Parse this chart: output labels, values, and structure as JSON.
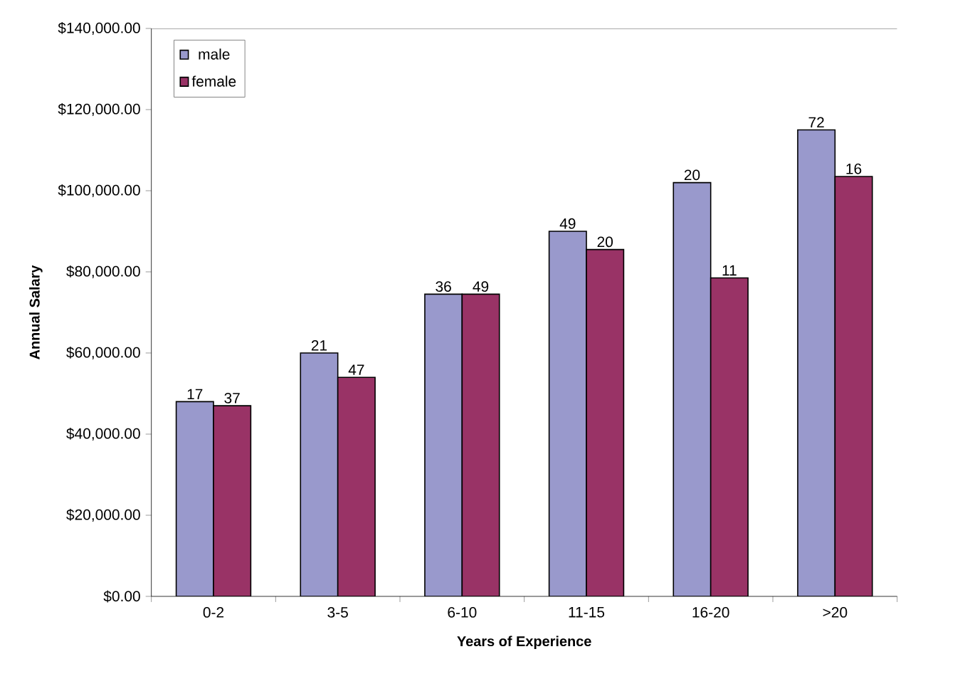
{
  "chart_data": {
    "type": "bar",
    "xlabel": "Years of Experience",
    "ylabel": "Annual Salary",
    "categories": [
      "0-2",
      "3-5",
      "6-10",
      "11-15",
      "16-20",
      ">20"
    ],
    "series": [
      {
        "name": "male",
        "color": "#9999cc",
        "values": [
          48000,
          60000,
          74500,
          90000,
          102000,
          115000
        ]
      },
      {
        "name": "female",
        "color": "#993366",
        "values": [
          47000,
          54000,
          74500,
          85500,
          78500,
          103500
        ]
      }
    ],
    "annotations": [
      {
        "text": "17",
        "x": "0-2",
        "y": 48000
      },
      {
        "text": "21",
        "x": "3-5",
        "y": 60000
      },
      {
        "text": "36",
        "x": "6-10",
        "y": 74500
      },
      {
        "text": "49",
        "x": "11-15",
        "y": 90000
      },
      {
        "text": "20",
        "x": "16-20",
        "y": 102000
      },
      {
        "text": "72",
        "x": ">20",
        "y": 115000
      },
      {
        "text": "37",
        "x": "0-2",
        "y": 47000
      },
      {
        "text": "47",
        "x": "3-5",
        "y": 54000
      },
      {
        "text": "49",
        "x": "6-10",
        "y": 74500
      },
      {
        "text": "20",
        "x": "11-15",
        "y": 85500
      },
      {
        "text": "11",
        "x": "16-20",
        "y": 78500
      },
      {
        "text": "16",
        "x": ">20",
        "y": 103500
      }
    ],
    "ylim": [
      0,
      140000
    ],
    "yticks": [
      {
        "value": 0,
        "label": "$0.00"
      },
      {
        "value": 20000,
        "label": "$20,000.00"
      },
      {
        "value": 40000,
        "label": "$40,000.00"
      },
      {
        "value": 60000,
        "label": "$60,000.00"
      },
      {
        "value": 80000,
        "label": "$80,000.00"
      },
      {
        "value": 100000,
        "label": "$100,000.00"
      },
      {
        "value": 120000,
        "label": "$120,000.00"
      },
      {
        "value": 140000,
        "label": "$140,000.00"
      }
    ],
    "grid": false,
    "legend": "top left"
  }
}
